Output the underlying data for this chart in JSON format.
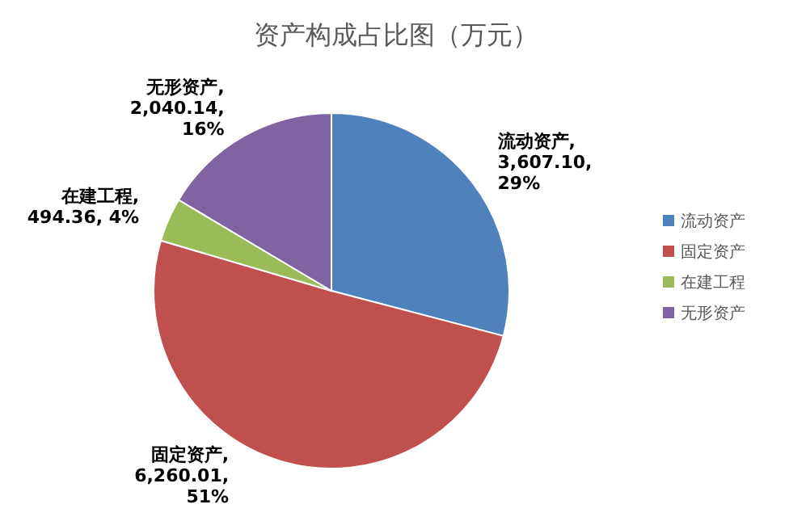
{
  "chart_data": {
    "type": "pie",
    "title": "资产构成占比图（万元）",
    "categories": [
      "流动资产",
      "固定资产",
      "在建工程",
      "无形资产"
    ],
    "values": [
      3607.1,
      6260.01,
      494.36,
      2040.14
    ],
    "colors": [
      "#4f81bd",
      "#c0504d",
      "#9bbb59",
      "#8064a2"
    ],
    "value_labels": [
      "流动资产,\n3,607.10,\n29%",
      "固定资产,\n6,260.01,\n51%",
      "在建工程,\n494.36, 4%",
      "无形资产,\n2,040.14,\n16%"
    ],
    "legend": "right"
  }
}
